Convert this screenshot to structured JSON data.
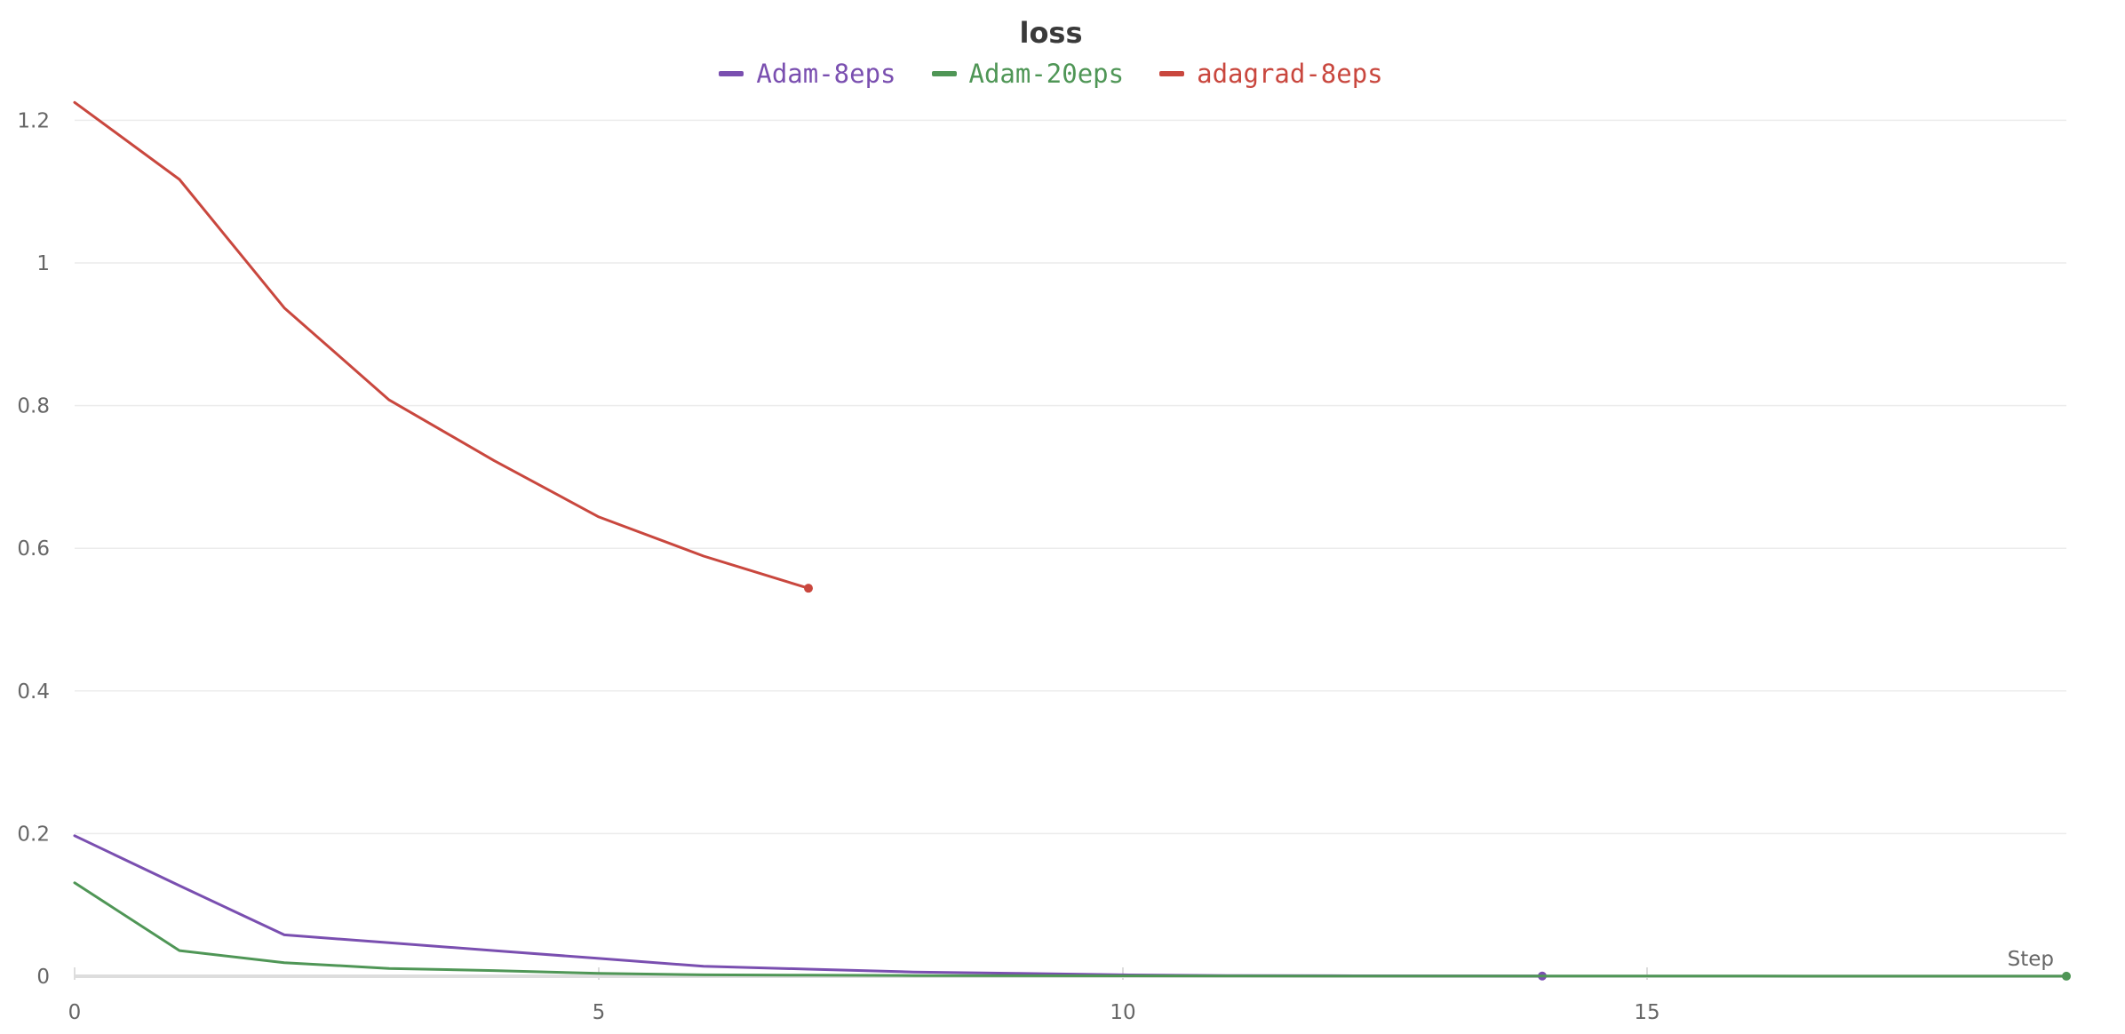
{
  "chart_data": {
    "type": "line",
    "title": "loss",
    "xlabel": "Step",
    "ylabel": "",
    "xlim": [
      0,
      19
    ],
    "ylim": [
      0,
      1.25
    ],
    "x_ticks": [
      0,
      5,
      10,
      15
    ],
    "x_tick_labels": [
      "0",
      "5",
      "10",
      "15"
    ],
    "y_ticks": [
      0,
      0.2,
      0.4,
      0.6,
      0.8,
      1,
      1.2
    ],
    "y_tick_labels": [
      "0",
      "0.2",
      "0.4",
      "0.6",
      "0.8",
      "1",
      "1.2"
    ],
    "grid": true,
    "legend_position": "top-center",
    "series": [
      {
        "name": "Adam-8eps",
        "color": "#7a4fb0",
        "x": [
          0,
          1,
          2,
          3,
          4,
          5,
          6,
          7,
          8,
          9,
          10,
          11,
          12,
          13,
          14
        ],
        "y": [
          0.197,
          0.127,
          0.058,
          0.047,
          0.036,
          0.025,
          0.014,
          0.01,
          0.006,
          0.004,
          0.002,
          0.001,
          0.0008,
          0.0005,
          0.0003
        ]
      },
      {
        "name": "Adam-20eps",
        "color": "#4f9656",
        "x": [
          0,
          1,
          2,
          3,
          4,
          5,
          6,
          7,
          8,
          9,
          10,
          11,
          12,
          13,
          14,
          15,
          16,
          17,
          18,
          19
        ],
        "y": [
          0.131,
          0.036,
          0.019,
          0.011,
          0.008,
          0.004,
          0.002,
          0.0015,
          0.001,
          0.0008,
          0.0006,
          0.0005,
          0.0004,
          0.0003,
          0.0003,
          0.0002,
          0.0002,
          0.0001,
          0.0001,
          0.0001
        ]
      },
      {
        "name": "adagrad-8eps",
        "color": "#c9473e",
        "x": [
          0,
          1,
          2,
          3,
          4,
          5,
          6,
          7
        ],
        "y": [
          1.225,
          1.117,
          0.937,
          0.808,
          0.723,
          0.644,
          0.589,
          0.544
        ]
      }
    ]
  }
}
